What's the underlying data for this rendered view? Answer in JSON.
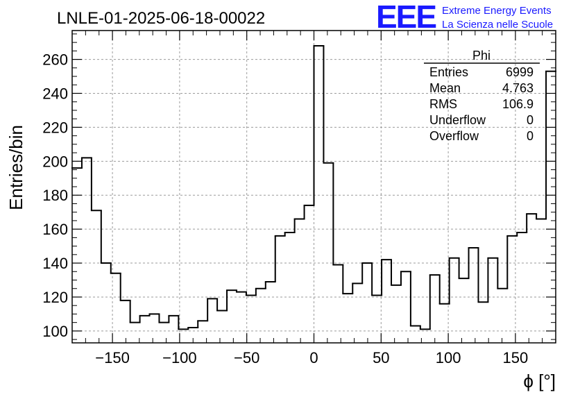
{
  "header": {
    "run_title": "LNLE-01-2025-06-18-00022",
    "logo_text": "EEE",
    "logo_line1": "Extreme Energy Events",
    "logo_line2": "La Scienza nelle Scuole",
    "logo_color": "#1a1aff"
  },
  "stats_box": {
    "title": "Phi",
    "rows": [
      {
        "label": "Entries",
        "value": "6999"
      },
      {
        "label": "Mean",
        "value": "4.763"
      },
      {
        "label": "RMS",
        "value": "106.9"
      },
      {
        "label": "Underflow",
        "value": "0"
      },
      {
        "label": "Overflow",
        "value": "0"
      }
    ]
  },
  "chart_data": {
    "type": "bar",
    "histogram_style": "step",
    "title": "LNLE-01-2025-06-18-00022",
    "xlabel": "ϕ [°]",
    "ylabel": "Entries/bin",
    "xlim": [
      -180,
      180
    ],
    "ylim": [
      93,
      277
    ],
    "bin_width": 7.2,
    "grid": true,
    "x_ticks": [
      -150,
      -100,
      -50,
      0,
      50,
      100,
      150
    ],
    "y_ticks": [
      100,
      120,
      140,
      160,
      180,
      200,
      220,
      240,
      260
    ],
    "x_tick_labels": [
      "−150",
      "−100",
      "−50",
      "0",
      "50",
      "100",
      "150"
    ],
    "y_tick_labels": [
      "100",
      "120",
      "140",
      "160",
      "180",
      "200",
      "220",
      "240",
      "260"
    ],
    "bin_edges_start": -180,
    "values": [
      196,
      202,
      171,
      140,
      134,
      118,
      105,
      109,
      110,
      105,
      109,
      101,
      102,
      106,
      119,
      112,
      124,
      123,
      121,
      125,
      129,
      156,
      158,
      166,
      174,
      268,
      199,
      139,
      122,
      128,
      140,
      121,
      142,
      127,
      135,
      103,
      101,
      133,
      116,
      143,
      131,
      149,
      117,
      143,
      125,
      156,
      158,
      169,
      166,
      253
    ]
  }
}
